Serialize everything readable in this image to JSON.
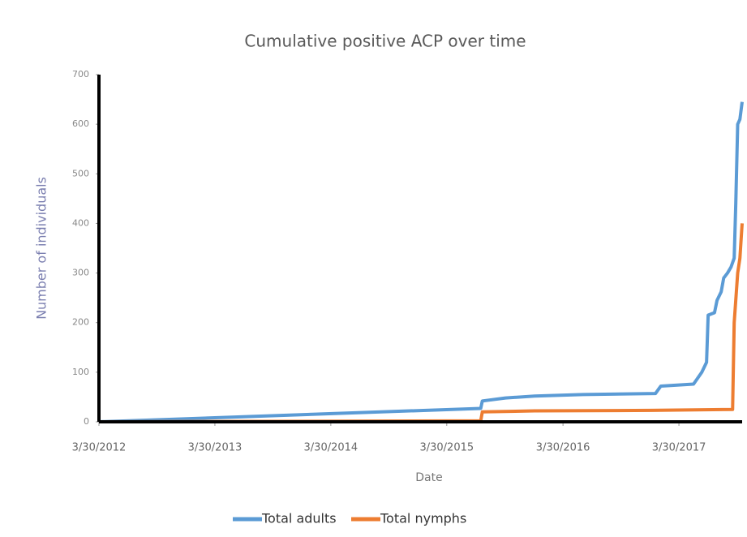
{
  "chart_data": {
    "type": "line",
    "title": "Cumulative positive ACP over time",
    "x_label": "Date",
    "y_label": "Number of individuals",
    "xlim": [
      "3/30/2012",
      "10/15/2017"
    ],
    "xticks": [
      "3/30/2012",
      "3/30/2013",
      "3/30/2014",
      "3/30/2015",
      "3/30/2016",
      "3/30/2017"
    ],
    "ylim": [
      0,
      700
    ],
    "yticks": [
      0,
      100,
      200,
      300,
      400,
      500,
      600,
      700
    ],
    "legend": "bottom",
    "series": [
      {
        "name": "Total adults",
        "color": "#5b9bd5",
        "x": [
          "3/30/2012",
          "7/15/2015",
          "7/20/2015",
          "10/1/2015",
          "1/1/2016",
          "6/1/2016",
          "1/15/2017",
          "2/1/2017",
          "5/15/2017",
          "6/10/2017",
          "6/25/2017",
          "6/30/2017",
          "7/20/2017",
          "7/28/2017",
          "8/10/2017",
          "8/18/2017",
          "8/30/2017",
          "9/10/2017",
          "9/20/2017",
          "9/25/2017",
          "10/1/2017",
          "10/8/2017",
          "10/15/2017"
        ],
        "values": [
          0,
          27,
          42,
          48,
          52,
          55,
          57,
          72,
          76,
          100,
          120,
          215,
          220,
          245,
          262,
          290,
          300,
          312,
          330,
          440,
          600,
          610,
          645
        ]
      },
      {
        "name": "Total nymphs",
        "color": "#ed7d31",
        "x": [
          "3/30/2012",
          "7/15/2015",
          "7/20/2015",
          "1/1/2016",
          "1/1/2017",
          "9/15/2017",
          "9/20/2017",
          "10/1/2017",
          "10/8/2017",
          "10/15/2017"
        ],
        "values": [
          0,
          2,
          20,
          22,
          23,
          25,
          200,
          300,
          330,
          400
        ]
      }
    ]
  }
}
